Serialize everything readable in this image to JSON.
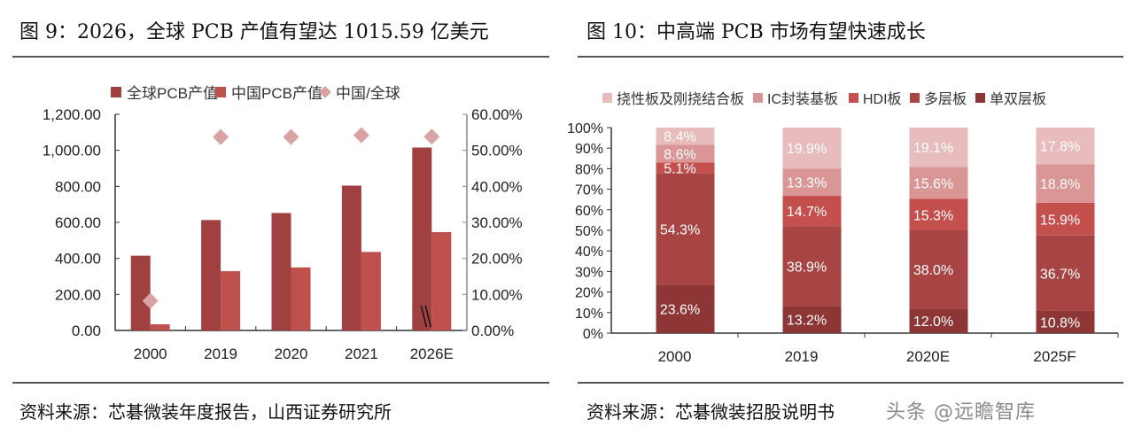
{
  "left": {
    "title": "图 9：2026，全球 PCB 产值有望达 1015.59 亿美元",
    "source": "资料来源：芯碁微装年度报告，山西证券研究所"
  },
  "right": {
    "title": "图 10：中高端 PCB 市场有望快速成长",
    "source": "资料来源：芯碁微装招股说明书",
    "watermark": "头条 @远瞻智库"
  },
  "chart_data": [
    {
      "type": "bar",
      "categories": [
        "2000",
        "2019",
        "2020",
        "2021",
        "2026E"
      ],
      "series": [
        {
          "name": "全球PCB产值",
          "axis": "left",
          "color": "#A04040",
          "values": [
            415,
            613,
            652,
            804,
            1015.59
          ]
        },
        {
          "name": "中国PCB产值",
          "axis": "left",
          "color": "#C0504D",
          "values": [
            34,
            329,
            350,
            436,
            546
          ]
        },
        {
          "name": "中国/全球",
          "axis": "right",
          "type": "scatter",
          "marker": "diamond",
          "color": "#D9A3A3",
          "values": [
            8.2,
            53.7,
            53.7,
            54.2,
            53.8
          ]
        }
      ],
      "yticks": [
        "0.00",
        "200.00",
        "400.00",
        "600.00",
        "800.00",
        "1,000.00",
        "1,200.00"
      ],
      "y2ticks": [
        "0.00%",
        "10.00%",
        "20.00%",
        "30.00%",
        "40.00%",
        "50.00%",
        "60.00%"
      ],
      "ylim": [
        0,
        1200
      ],
      "y2lim": [
        0,
        60
      ],
      "legend": "top",
      "grid": false,
      "axis_break": "2026E"
    },
    {
      "type": "bar",
      "stacked": true,
      "categories": [
        "2000",
        "2019",
        "2020E",
        "2025F"
      ],
      "series": [
        {
          "name": "单双层板",
          "color": "#8E3636",
          "values": [
            23.6,
            13.2,
            12.0,
            10.8
          ]
        },
        {
          "name": "多层板",
          "color": "#A84444",
          "values": [
            54.3,
            38.9,
            38.0,
            36.7
          ]
        },
        {
          "name": "HDI板",
          "color": "#C4504E",
          "values": [
            5.1,
            14.7,
            15.3,
            15.9
          ]
        },
        {
          "name": "IC封装基板",
          "color": "#D99695",
          "values": [
            8.6,
            13.3,
            15.6,
            18.8
          ]
        },
        {
          "name": "挠性板及刚挠结合板",
          "color": "#E8BCBC",
          "values": [
            8.4,
            19.9,
            19.1,
            17.8
          ]
        }
      ],
      "data_labels": [
        [
          "23.6%",
          "13.2%",
          "12.0%",
          "10.8%"
        ],
        [
          "54.3%",
          "38.9%",
          "38.0%",
          "36.7%"
        ],
        [
          "5.1%",
          "14.7%",
          "15.3%",
          "15.9%"
        ],
        [
          "8.6%",
          "13.3%",
          "15.6%",
          "18.8%"
        ],
        [
          "8.4%",
          "19.9%",
          "19.1%",
          "17.8%"
        ]
      ],
      "yticks": [
        "0%",
        "10%",
        "20%",
        "30%",
        "40%",
        "50%",
        "60%",
        "70%",
        "80%",
        "90%",
        "100%"
      ],
      "ylim": [
        0,
        100
      ],
      "legend": "top",
      "grid": false
    }
  ]
}
